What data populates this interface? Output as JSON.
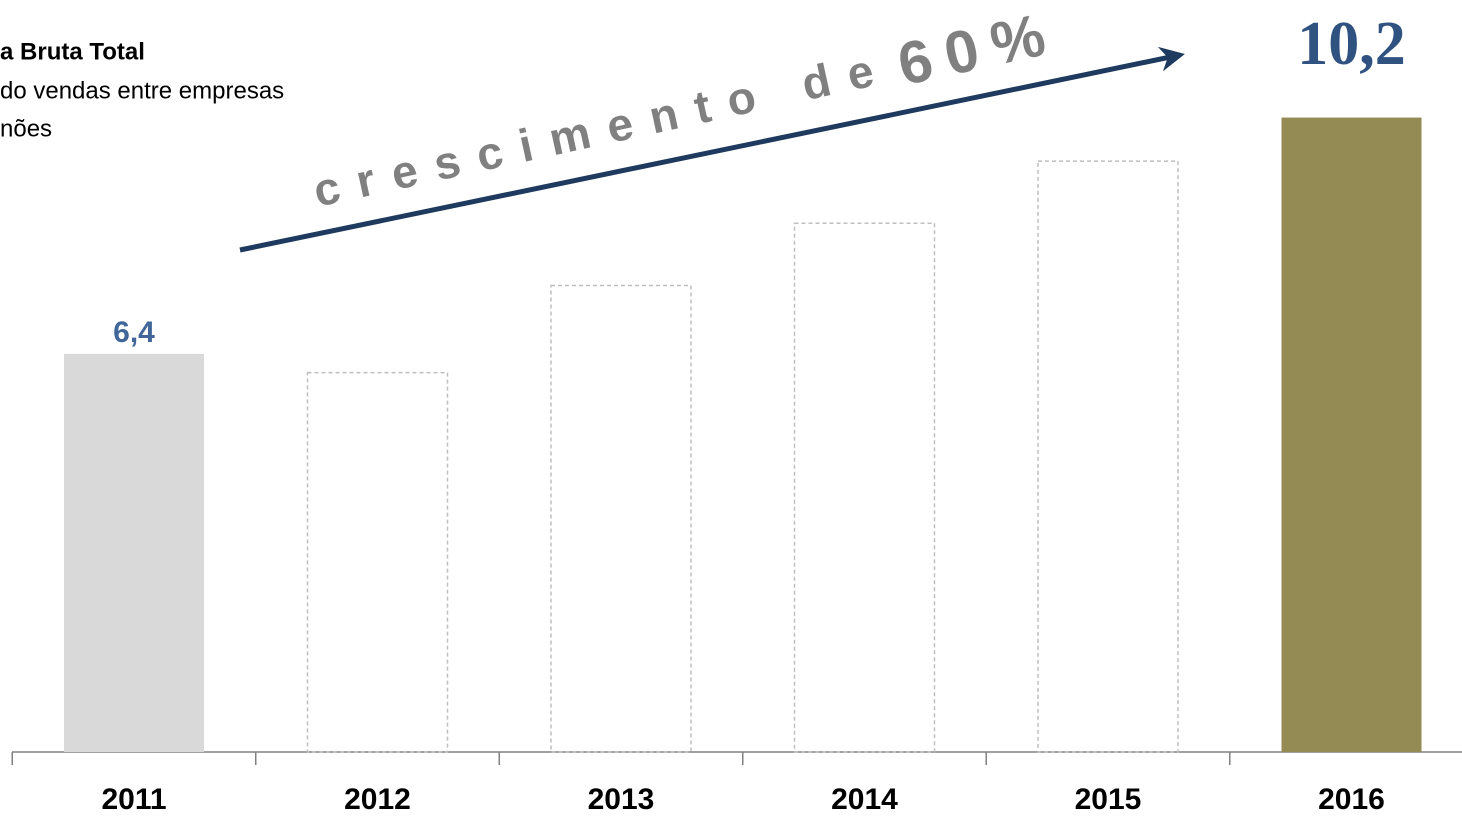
{
  "chart_data": {
    "type": "bar",
    "title": "a Bruta Total",
    "subtitle": [
      "do vendas entre empresas",
      "nões"
    ],
    "categories": [
      "2011",
      "2012",
      "2013",
      "2014",
      "2015",
      "2016"
    ],
    "values": [
      6.4,
      6.1,
      7.5,
      8.5,
      9.5,
      10.2
    ],
    "value_labels": [
      "6,4",
      null,
      null,
      null,
      null,
      "10,2"
    ],
    "colors": [
      "#d9d9d9",
      null,
      null,
      null,
      null,
      "#948a54"
    ],
    "outline_color": "#bfbfbf",
    "ylim": [
      0,
      12
    ],
    "annotations": [
      "crescimento de",
      "60%"
    ],
    "arrow_color": "#1f3a5f"
  }
}
